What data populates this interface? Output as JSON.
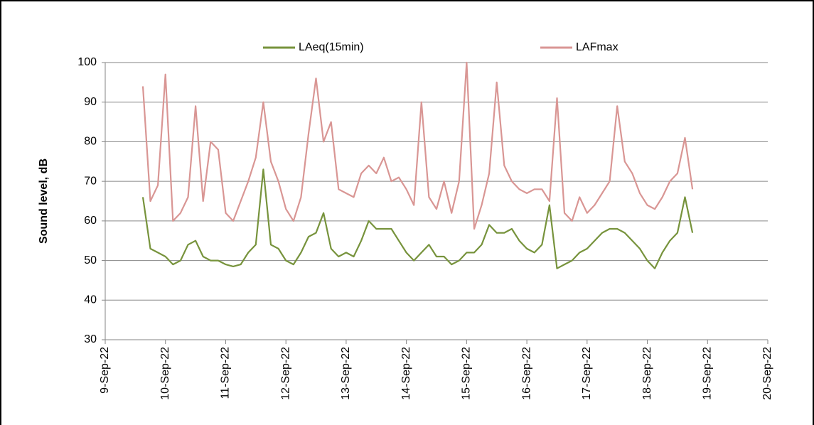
{
  "chart_data": {
    "type": "line",
    "y_label": "Sound level, dB",
    "x": [
      44813.625,
      44813.75,
      44813.875,
      44814,
      44814.125,
      44814.25,
      44814.375,
      44814.5,
      44814.625,
      44814.75,
      44814.875,
      44815,
      44815.125,
      44815.25,
      44815.375,
      44815.5,
      44815.625,
      44815.75,
      44815.875,
      44816,
      44816.125,
      44816.25,
      44816.375,
      44816.5,
      44816.625,
      44816.75,
      44816.875,
      44817,
      44817.125,
      44817.25,
      44817.375,
      44817.5,
      44817.625,
      44817.75,
      44817.875,
      44818,
      44818.125,
      44818.25,
      44818.375,
      44818.5,
      44818.625,
      44818.75,
      44818.875,
      44819,
      44819.125,
      44819.25,
      44819.375,
      44819.5,
      44819.625,
      44819.75,
      44819.875,
      44820,
      44820.125,
      44820.25,
      44820.375,
      44820.5,
      44820.625,
      44820.75,
      44820.875,
      44821,
      44821.125,
      44821.25,
      44821.375,
      44821.5,
      44821.625,
      44821.75,
      44821.875,
      44822,
      44822.125,
      44822.25,
      44822.375,
      44822.5,
      44822.625,
      44822.75
    ],
    "series": [
      {
        "name": "LAeq(15min)",
        "color": "#77933c",
        "values": [
          66,
          53,
          52,
          51,
          49,
          50,
          54,
          55,
          51,
          50,
          50,
          49,
          48.5,
          49,
          52,
          54,
          73,
          54,
          53,
          50,
          49,
          52,
          56,
          57,
          62,
          53,
          51,
          52,
          51,
          55,
          60,
          58,
          58,
          58,
          55,
          52,
          50,
          52,
          54,
          51,
          51,
          49,
          50,
          52,
          52,
          54,
          59,
          57,
          57,
          58,
          55,
          53,
          52,
          54,
          64,
          48,
          49,
          50,
          52,
          53,
          55,
          57,
          58,
          58,
          57,
          55,
          53,
          50,
          48,
          52,
          55,
          57,
          66,
          57
        ]
      },
      {
        "name": "LAFmax",
        "color": "#d99694",
        "values": [
          94,
          65,
          69,
          97,
          60,
          62,
          66,
          89,
          65,
          80,
          78,
          62,
          60,
          65,
          70,
          76,
          90,
          75,
          70,
          63,
          60,
          66,
          82,
          96,
          80,
          85,
          68,
          67,
          66,
          72,
          74,
          72,
          76,
          70,
          71,
          68,
          64,
          90,
          66,
          63,
          70,
          62,
          70,
          100,
          58,
          64,
          72,
          95,
          74,
          70,
          68,
          67,
          68,
          68,
          65,
          91,
          62,
          60,
          66,
          62,
          64,
          67,
          70,
          89,
          75,
          72,
          67,
          64,
          63,
          66,
          70,
          72,
          81,
          68
        ]
      }
    ],
    "xlim": [
      44813,
      44824
    ],
    "xticks": [
      {
        "value": 44813,
        "label": "9-Sep-22"
      },
      {
        "value": 44814,
        "label": "10-Sep-22"
      },
      {
        "value": 44815,
        "label": "11-Sep-22"
      },
      {
        "value": 44816,
        "label": "12-Sep-22"
      },
      {
        "value": 44817,
        "label": "13-Sep-22"
      },
      {
        "value": 44818,
        "label": "14-Sep-22"
      },
      {
        "value": 44819,
        "label": "15-Sep-22"
      },
      {
        "value": 44820,
        "label": "16-Sep-22"
      },
      {
        "value": 44821,
        "label": "17-Sep-22"
      },
      {
        "value": 44822,
        "label": "18-Sep-22"
      },
      {
        "value": 44823,
        "label": "19-Sep-22"
      },
      {
        "value": 44824,
        "label": "20-Sep-22"
      }
    ],
    "ylim": [
      30,
      100
    ],
    "yticks": [
      30,
      40,
      50,
      60,
      70,
      80,
      90,
      100
    ],
    "grid": true,
    "legend": "top"
  }
}
